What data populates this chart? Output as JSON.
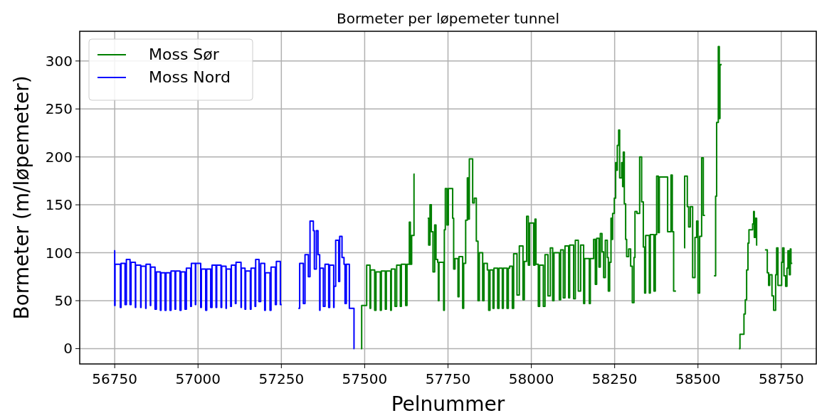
{
  "chart_data": {
    "type": "step",
    "title": "Bormeter per løpemeter tunnel",
    "xlabel": "Pelnummer",
    "ylabel": "Bormeter (m/løpemeter)",
    "xlim": [
      56645,
      58855
    ],
    "ylim": [
      -16,
      331
    ],
    "xticks": [
      56750,
      57000,
      57250,
      57500,
      57750,
      58000,
      58250,
      58500,
      58750
    ],
    "yticks": [
      0,
      50,
      100,
      150,
      200,
      250,
      300
    ],
    "grid": true,
    "legend": "top left",
    "series": [
      {
        "name": "Moss Sør",
        "color": "#008000",
        "x": [
          57489,
          57491,
          57506,
          57516,
          57518,
          57530,
          57534,
          57547,
          57550,
          57562,
          57565,
          57578,
          57580,
          57591,
          57596,
          57607,
          57610,
          57623,
          57627,
          57634,
          57637,
          57641,
          57648,
          57650,
          57670,
          57689,
          57692,
          57696,
          57700,
          57705,
          57710,
          57714,
          57719,
          57721,
          57723,
          57737,
          57739,
          57742,
          57747,
          57751,
          57764,
          57767,
          57771,
          57780,
          57783,
          57794,
          57797,
          57803,
          57808,
          57811,
          57814,
          57824,
          57829,
          57835,
          57840,
          57844,
          57854,
          57858,
          57868,
          57872,
          57876,
          57885,
          57888,
          57899,
          57903,
          57913,
          57916,
          57927,
          57931,
          57935,
          57943,
          57947,
          57957,
          57964,
          57975,
          57979,
          57986,
          57991,
          57995,
          58007,
          58011,
          58014,
          58021,
          58025,
          58036,
          58041,
          58050,
          58057,
          58064,
          58068,
          58084,
          58088,
          58096,
          58101,
          58112,
          58115,
          58127,
          58132,
          58141,
          58148,
          58157,
          58160,
          58174,
          58177,
          58187,
          58192,
          58196,
          58203,
          58207,
          58212,
          58217,
          58222,
          58228,
          58231,
          58235,
          58239,
          58242,
          58244,
          58249,
          58253,
          58256,
          58258,
          58262,
          58265,
          58271,
          58274,
          58276,
          58279,
          58283,
          58286,
          58292,
          58298,
          58303,
          58308,
          58311,
          58317,
          58325,
          58331,
          58336,
          58340,
          58343,
          58354,
          58357,
          58368,
          58372,
          58376,
          58381,
          58384,
          58406,
          58409,
          58419,
          58423,
          58427,
          58434,
          58445,
          58459,
          58460,
          58468,
          58472,
          58477,
          58484,
          58491,
          58496,
          58500,
          58505,
          58511,
          58516,
          58521,
          58535,
          58548,
          58553,
          58556,
          58557,
          58561,
          58564,
          58566,
          58569,
          58595,
          58623,
          58626,
          58638,
          58642,
          58646,
          58650,
          58653,
          58664,
          58667,
          58669,
          58672,
          58676,
          58678,
          58690,
          58701,
          58708,
          58712,
          58715,
          58722,
          58727,
          58733,
          58736,
          58740,
          58749,
          58751,
          58754,
          58758,
          58763,
          58767,
          58770,
          58774,
          58777,
          58779,
          58783
        ],
        "values": [
          0,
          45,
          87,
          42,
          82,
          40,
          80,
          40,
          81,
          41,
          81,
          40,
          83,
          44,
          87,
          44,
          88,
          45,
          88,
          132,
          88,
          118,
          182,
          182,
          null,
          136,
          108,
          150,
          122,
          80,
          129,
          93,
          90,
          50,
          90,
          40,
          124,
          167,
          129,
          167,
          136,
          83,
          94,
          54,
          96,
          42,
          89,
          134,
          178,
          135,
          198,
          152,
          157,
          112,
          50,
          100,
          50,
          89,
          82,
          40,
          82,
          42,
          84,
          42,
          84,
          42,
          84,
          42,
          84,
          86,
          42,
          99,
          56,
          107,
          51,
          91,
          138,
          87,
          131,
          87,
          135,
          88,
          44,
          87,
          44,
          98,
          55,
          105,
          50,
          100,
          51,
          103,
          53,
          107,
          53,
          108,
          52,
          113,
          60,
          108,
          47,
          94,
          47,
          94,
          114,
          67,
          115,
          85,
          120,
          101,
          74,
          113,
          95,
          60,
          90,
          136,
          114,
          141,
          157,
          194,
          186,
          212,
          228,
          178,
          194,
          169,
          205,
          151,
          114,
          96,
          104,
          86,
          48,
          95,
          143,
          141,
          200,
          153,
          106,
          58,
          118,
          58,
          119,
          60,
          119,
          180,
          121,
          179,
          179,
          122,
          181,
          122,
          60,
          60,
          null,
          105,
          180,
          148,
          127,
          148,
          74,
          116,
          133,
          58,
          117,
          199,
          139,
          139,
          null,
          76,
          159,
          236,
          236,
          315,
          240,
          296,
          297,
          null,
          0,
          15,
          36,
          51,
          82,
          110,
          124,
          130,
          143,
          116,
          136,
          108,
          108,
          null,
          103,
          79,
          66,
          77,
          55,
          40,
          77,
          105,
          66,
          66,
          90,
          105,
          76,
          65,
          84,
          102,
          77,
          104,
          89,
          89
        ]
      },
      {
        "name": "Moss Nord",
        "color": "#0000ff",
        "x": [
          56748,
          56750,
          56751,
          56767,
          56769,
          56781,
          56785,
          56796,
          56799,
          56812,
          56813,
          56828,
          56829,
          56843,
          56844,
          56857,
          56858,
          56871,
          56875,
          56887,
          56889,
          56901,
          56904,
          56916,
          56919,
          56931,
          56933,
          56946,
          56949,
          56961,
          56965,
          56978,
          56980,
          56992,
          56993,
          57008,
          57010,
          57023,
          57026,
          57038,
          57042,
          57054,
          57056,
          57069,
          57071,
          57084,
          57085,
          57098,
          57100,
          57112,
          57114,
          57129,
          57130,
          57141,
          57143,
          57157,
          57159,
          57171,
          57173,
          57183,
          57188,
          57200,
          57202,
          57216,
          57219,
          57232,
          57235,
          57247,
          57251,
          57275,
          57301,
          57305,
          57316,
          57321,
          57331,
          57336,
          57346,
          57349,
          57355,
          57360,
          57365,
          57366,
          57376,
          57381,
          57392,
          57395,
          57407,
          57408,
          57413,
          57422,
          57425,
          57432,
          57438,
          57441,
          57445,
          57454,
          57468,
          57469
        ],
        "values": [
          102,
          45,
          88,
          43,
          89,
          46,
          93,
          46,
          90,
          43,
          87,
          43,
          86,
          42,
          88,
          45,
          85,
          41,
          80,
          40,
          79,
          40,
          79,
          40,
          81,
          41,
          81,
          40,
          80,
          41,
          84,
          44,
          89,
          46,
          89,
          43,
          83,
          40,
          83,
          43,
          87,
          43,
          87,
          43,
          86,
          42,
          83,
          44,
          87,
          47,
          90,
          43,
          84,
          41,
          81,
          41,
          84,
          44,
          93,
          49,
          89,
          40,
          79,
          40,
          85,
          46,
          91,
          46,
          46,
          null,
          42,
          89,
          47,
          98,
          75,
          133,
          123,
          83,
          123,
          98,
          40,
          84,
          44,
          88,
          43,
          87,
          43,
          65,
          113,
          70,
          117,
          95,
          88,
          47,
          88,
          42,
          0,
          0
        ]
      }
    ]
  }
}
